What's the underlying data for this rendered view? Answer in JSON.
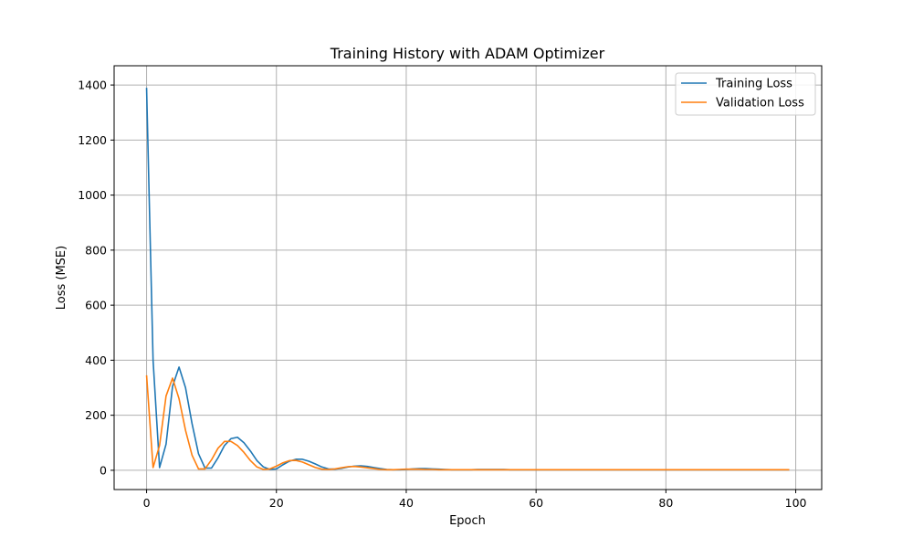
{
  "chart_data": {
    "type": "line",
    "title": "Training History with ADAM Optimizer",
    "xlabel": "Epoch",
    "ylabel": "Loss (MSE)",
    "xlim": [
      -5,
      104
    ],
    "ylim": [
      -70,
      1470
    ],
    "xticks": [
      0,
      20,
      40,
      60,
      80,
      100
    ],
    "yticks": [
      0,
      200,
      400,
      600,
      800,
      1000,
      1200,
      1400
    ],
    "grid": true,
    "legend": "top-right",
    "series": [
      {
        "name": "Training Loss",
        "color": "#1f77b4",
        "x": [
          0,
          1,
          2,
          3,
          4,
          5,
          6,
          7,
          8,
          9,
          10,
          11,
          12,
          13,
          14,
          15,
          16,
          17,
          18,
          19,
          20,
          21,
          22,
          23,
          24,
          25,
          26,
          27,
          28,
          29,
          30,
          31,
          32,
          33,
          34,
          35,
          36,
          37,
          38,
          39,
          40,
          41,
          42,
          43,
          44,
          45,
          46,
          47,
          48,
          49,
          50,
          51,
          52,
          53,
          54,
          55,
          56,
          57,
          58,
          59,
          60,
          61,
          62,
          63,
          64,
          65,
          66,
          67,
          68,
          69,
          70,
          71,
          72,
          73,
          74,
          75,
          76,
          77,
          78,
          79,
          80,
          81,
          82,
          83,
          84,
          85,
          86,
          87,
          88,
          89,
          90,
          91,
          92,
          93,
          94,
          95,
          96,
          97,
          98,
          99
        ],
        "y": [
          1390,
          400,
          10,
          95,
          305,
          375,
          300,
          170,
          60,
          8,
          8,
          45,
          90,
          115,
          120,
          100,
          70,
          35,
          12,
          3,
          5,
          20,
          33,
          40,
          40,
          33,
          23,
          12,
          5,
          4,
          7,
          12,
          15,
          16,
          14,
          10,
          6,
          3,
          2,
          2,
          3,
          5,
          6,
          6,
          5,
          4,
          3,
          2,
          2,
          2,
          2,
          3,
          3,
          3,
          3,
          3,
          2,
          2,
          2,
          2,
          2,
          2,
          2,
          2,
          2,
          2,
          2,
          2,
          2,
          2,
          2,
          2,
          2,
          2,
          2,
          2,
          2,
          2,
          2,
          2,
          2,
          2,
          2,
          2,
          2,
          2,
          2,
          2,
          2,
          2,
          2,
          2,
          2,
          2,
          2,
          2,
          2,
          2,
          2,
          2
        ]
      },
      {
        "name": "Validation Loss",
        "color": "#ff7f0e",
        "x": [
          0,
          1,
          2,
          3,
          4,
          5,
          6,
          7,
          8,
          9,
          10,
          11,
          12,
          13,
          14,
          15,
          16,
          17,
          18,
          19,
          20,
          21,
          22,
          23,
          24,
          25,
          26,
          27,
          28,
          29,
          30,
          31,
          32,
          33,
          34,
          35,
          36,
          37,
          38,
          39,
          40,
          41,
          42,
          43,
          44,
          45,
          46,
          47,
          48,
          49,
          50,
          51,
          52,
          53,
          54,
          55,
          56,
          57,
          58,
          59,
          60,
          61,
          62,
          63,
          64,
          65,
          66,
          67,
          68,
          69,
          70,
          71,
          72,
          73,
          74,
          75,
          76,
          77,
          78,
          79,
          80,
          81,
          82,
          83,
          84,
          85,
          86,
          87,
          88,
          89,
          90,
          91,
          92,
          93,
          94,
          95,
          96,
          97,
          98,
          99
        ],
        "y": [
          345,
          10,
          90,
          270,
          335,
          260,
          145,
          55,
          5,
          5,
          38,
          80,
          105,
          105,
          90,
          65,
          35,
          12,
          3,
          5,
          15,
          27,
          35,
          36,
          30,
          20,
          10,
          4,
          3,
          5,
          9,
          13,
          14,
          12,
          9,
          6,
          3,
          2,
          2,
          3,
          4,
          4,
          4,
          3,
          3,
          2,
          2,
          2,
          2,
          2,
          2,
          2,
          2,
          2,
          2,
          2,
          2,
          2,
          2,
          2,
          2,
          2,
          2,
          2,
          2,
          2,
          2,
          2,
          2,
          2,
          2,
          2,
          2,
          2,
          2,
          2,
          2,
          2,
          2,
          2,
          2,
          2,
          2,
          2,
          2,
          2,
          2,
          2,
          2,
          2,
          2,
          2,
          2,
          2,
          2,
          2,
          2,
          2,
          2,
          2
        ]
      }
    ]
  }
}
